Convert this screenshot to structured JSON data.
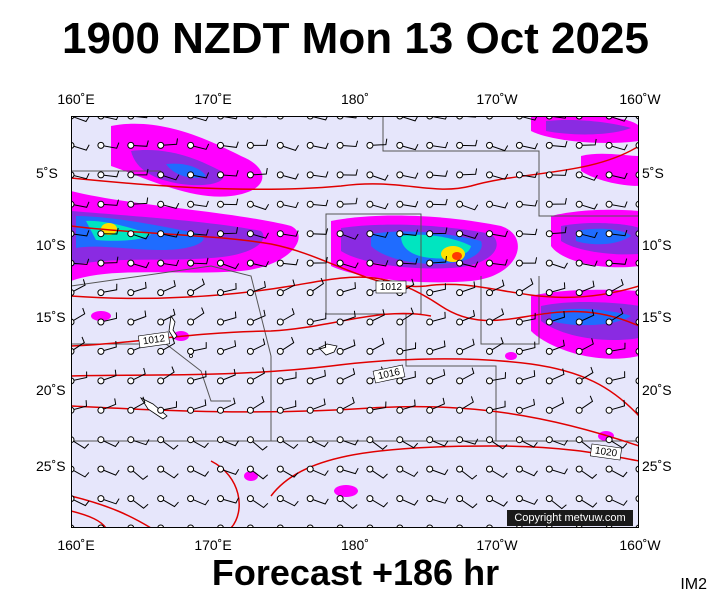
{
  "title": "1900 NZDT Mon 13 Oct 2025",
  "footer": "Forecast +186 hr",
  "badge": "IM2",
  "copyright": "Copyright metvuw.com",
  "axes": {
    "lon_top": [
      "160˚E",
      "170˚E",
      "180˚",
      "170˚W",
      "160˚W"
    ],
    "lon_bottom": [
      "160˚E",
      "170˚E",
      "180˚",
      "170˚W",
      "160˚W"
    ],
    "lat_left": [
      "5˚S",
      "10˚S",
      "15˚S",
      "20˚S",
      "25˚S"
    ],
    "lat_right": [
      "5˚S",
      "10˚S",
      "15˚S",
      "20˚S",
      "25˚S"
    ]
  },
  "isobar_labels": [
    "1012",
    "1012",
    "1016",
    "1020"
  ],
  "colors": {
    "ocean": "#e6e6fb",
    "isobar": "#e00000",
    "rain_light": "#ff00ff",
    "rain_mid": "#8a2be2",
    "rain_heavy": "#1f6cff",
    "rain_very_heavy": "#00e5c0",
    "rain_extreme": "#ffe000"
  }
}
